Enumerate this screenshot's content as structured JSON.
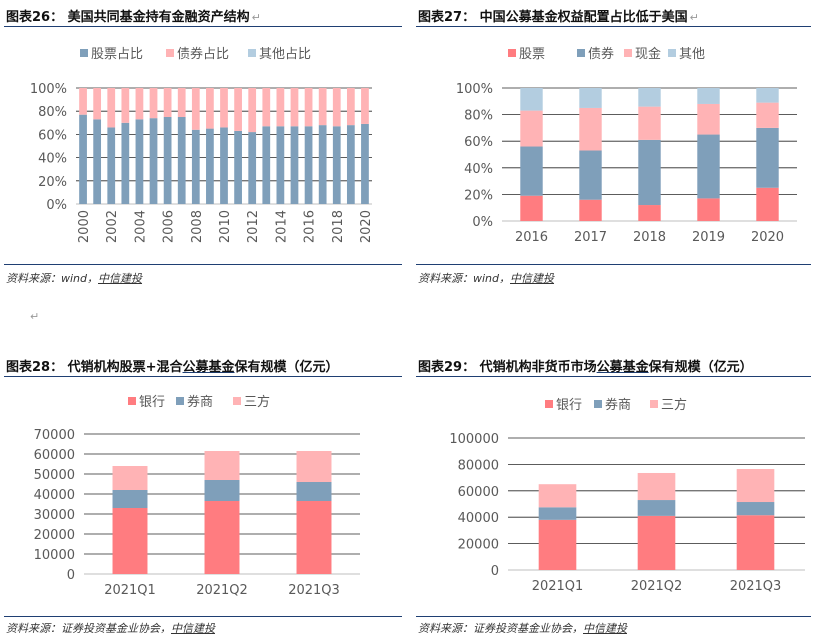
{
  "colors": {
    "rule": "#1f3f73",
    "red": "#ff7c80",
    "blue": "#7f9fba",
    "pink": "#ffb3b5",
    "lightblue": "#b3cde0"
  },
  "panels": [
    {
      "title_pre": "图表26： 美国共同基金持有金融资产结构",
      "title_acc": "",
      "title_post": "",
      "source_pre": "资料来源：wind，",
      "source_brand": "中信建投"
    },
    {
      "title_pre": "图表27： 中国公募基金权益配置占比低于美国",
      "title_acc": "",
      "title_post": "",
      "source_pre": "资料来源：wind，",
      "source_brand": "中信建投"
    },
    {
      "title_pre": "图表28： 代销机构股票+混合",
      "title_acc": "公募基金",
      "title_post": "保有规模（亿元）",
      "source_pre": "资料来源：证券投资基金业协会，",
      "source_brand": "中信建投"
    },
    {
      "title_pre": "图表29： 代销机构非货币市场",
      "title_acc": "公募基金",
      "title_post": "保有规模（亿元）",
      "source_pre": "资料来源：证券投资基金业协会，",
      "source_brand": "中信建投"
    }
  ],
  "chart_data": [
    {
      "type": "bar",
      "stacked": true,
      "categories": [
        "2000",
        "2001",
        "2002",
        "2003",
        "2004",
        "2005",
        "2006",
        "2007",
        "2008",
        "2009",
        "2010",
        "2011",
        "2012",
        "2013",
        "2014",
        "2015",
        "2016",
        "2017",
        "2018",
        "2019",
        "2020"
      ],
      "x_tick_labels": [
        "2000",
        "2002",
        "2004",
        "2006",
        "2008",
        "2010",
        "2012",
        "2014",
        "2016",
        "2018",
        "2020"
      ],
      "series": [
        {
          "name": "股票占比",
          "color": "#7f9fba",
          "values": [
            77,
            73,
            66,
            70,
            73,
            74,
            75,
            75,
            64,
            65,
            66,
            63,
            62,
            67,
            67,
            67,
            67,
            68,
            67,
            68,
            69
          ]
        },
        {
          "name": "债券占比",
          "color": "#ffb3b5",
          "values": [
            23,
            27,
            34,
            30,
            27,
            26,
            25,
            25,
            36,
            35,
            34,
            37,
            38,
            33,
            33,
            33,
            33,
            32,
            33,
            32,
            31
          ]
        },
        {
          "name": "其他占比",
          "color": "#b3cde0",
          "values": [
            0,
            0,
            0,
            0,
            0,
            0,
            0,
            0,
            0,
            0,
            0,
            0,
            0,
            0,
            0,
            0,
            0,
            0,
            0,
            0,
            0
          ]
        }
      ],
      "y_ticks": [
        "0%",
        "20%",
        "40%",
        "60%",
        "80%",
        "100%"
      ],
      "ylim": [
        0,
        100
      ],
      "grid": true,
      "legend": "top"
    },
    {
      "type": "bar",
      "stacked": true,
      "categories": [
        "2016",
        "2017",
        "2018",
        "2019",
        "2020"
      ],
      "series": [
        {
          "name": "股票",
          "color": "#ff7c80",
          "values": [
            19,
            16,
            12,
            17,
            25
          ]
        },
        {
          "name": "债券",
          "color": "#7f9fba",
          "values": [
            37,
            37,
            49,
            48,
            45
          ]
        },
        {
          "name": "现金",
          "color": "#ffb3b5",
          "values": [
            27,
            32,
            25,
            23,
            19
          ]
        },
        {
          "name": "其他",
          "color": "#b3cde0",
          "values": [
            17,
            15,
            14,
            12,
            11
          ]
        }
      ],
      "y_ticks": [
        "0%",
        "20%",
        "40%",
        "60%",
        "80%",
        "100%"
      ],
      "ylim": [
        0,
        100
      ],
      "grid": true,
      "legend": "top"
    },
    {
      "type": "bar",
      "stacked": true,
      "categories": [
        "2021Q1",
        "2021Q2",
        "2021Q3"
      ],
      "series": [
        {
          "name": "银行",
          "color": "#ff7c80",
          "values": [
            33000,
            36500,
            36500
          ]
        },
        {
          "name": "券商",
          "color": "#7f9fba",
          "values": [
            9000,
            10500,
            9500
          ]
        },
        {
          "name": "三方",
          "color": "#ffb3b5",
          "values": [
            12000,
            14500,
            15500
          ]
        }
      ],
      "y_ticks": [
        "0",
        "10000",
        "20000",
        "30000",
        "40000",
        "50000",
        "60000",
        "70000"
      ],
      "ylim": [
        0,
        70000
      ],
      "grid": true,
      "legend": "top"
    },
    {
      "type": "bar",
      "stacked": true,
      "categories": [
        "2021Q1",
        "2021Q2",
        "2021Q3"
      ],
      "series": [
        {
          "name": "银行",
          "color": "#ff7c80",
          "values": [
            38000,
            41000,
            41500
          ]
        },
        {
          "name": "券商",
          "color": "#7f9fba",
          "values": [
            9500,
            12000,
            10000
          ]
        },
        {
          "name": "三方",
          "color": "#ffb3b5",
          "values": [
            17500,
            20500,
            25000
          ]
        }
      ],
      "y_ticks": [
        "0",
        "20000",
        "40000",
        "60000",
        "80000",
        "100000"
      ],
      "ylim": [
        0,
        100000
      ],
      "grid": true,
      "legend": "top"
    }
  ]
}
